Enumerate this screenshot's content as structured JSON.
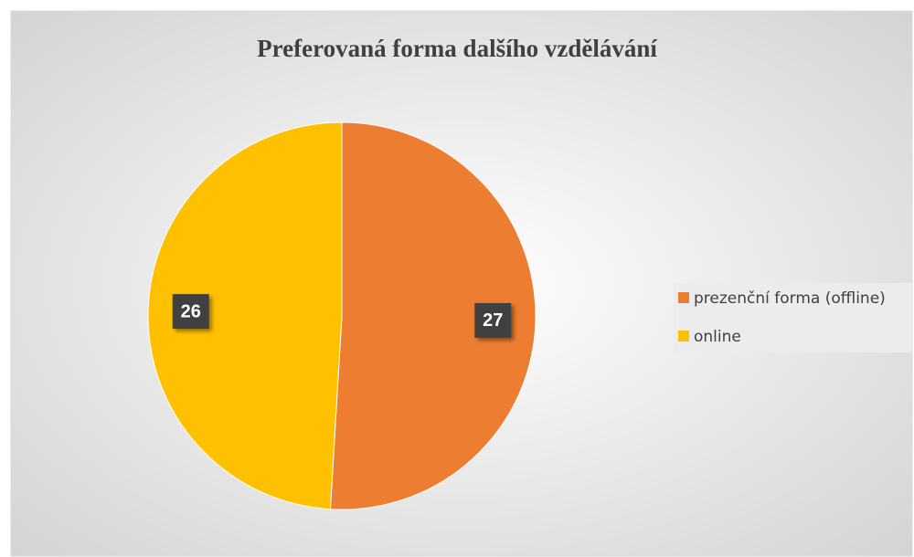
{
  "chart_data": {
    "type": "pie",
    "title": "Preferovaná forma dalšího vzdělávání",
    "categories": [
      "prezenční forma (offline)",
      "online"
    ],
    "values": [
      27,
      26
    ],
    "colors": [
      "#ED7D31",
      "#FFC000"
    ],
    "legend": "right"
  }
}
